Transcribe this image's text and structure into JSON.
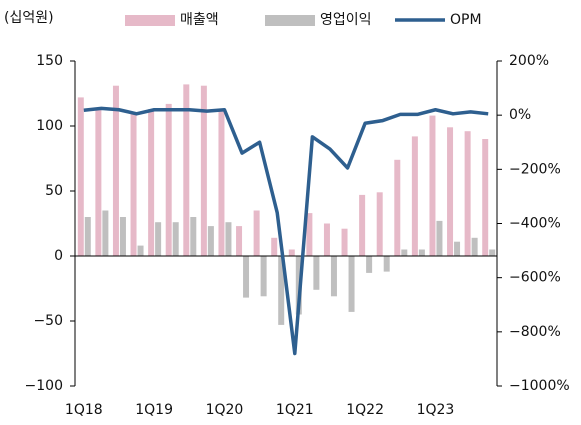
{
  "chart_data": {
    "type": "bar_line",
    "unit_label": "(십억원)",
    "categories": [
      "1Q18",
      null,
      null,
      null,
      "1Q19",
      null,
      null,
      null,
      "1Q20",
      null,
      null,
      null,
      "1Q21",
      null,
      null,
      null,
      "1Q22",
      null,
      null,
      null,
      "1Q23",
      null,
      null,
      null
    ],
    "series": [
      {
        "name": "매출액",
        "type": "bar",
        "color": "#e6b9c8",
        "values": [
          122,
          113,
          131,
          110,
          113,
          117,
          132,
          131,
          113,
          23,
          35,
          14,
          5,
          33,
          25,
          21,
          47,
          49,
          74,
          92,
          108,
          99,
          96,
          90
        ]
      },
      {
        "name": "영업이익",
        "type": "bar",
        "color": "#bfbfbf",
        "values": [
          30,
          35,
          30,
          8,
          26,
          26,
          30,
          23,
          26,
          -32,
          -31,
          -53,
          -45,
          -26,
          -31,
          -43,
          -13,
          -12,
          5,
          5,
          27,
          11,
          14,
          5
        ]
      },
      {
        "name": "OPM",
        "type": "line",
        "axis": "y2",
        "color": "#2e5f8f",
        "values": [
          18,
          25,
          20,
          5,
          20,
          20,
          20,
          15,
          20,
          -140,
          -100,
          -360,
          -880,
          -80,
          -125,
          -195,
          -30,
          -20,
          3,
          3,
          20,
          5,
          12,
          5
        ]
      }
    ],
    "ylim": [
      -100,
      150
    ],
    "yticks": [
      {
        "value": -100,
        "label": "−100"
      },
      {
        "value": -50,
        "label": "−50"
      },
      0,
      50,
      100,
      150
    ],
    "y2lim": [
      -1000,
      200
    ],
    "y2ticks": [
      {
        "value": -1000,
        "label": "−1000%"
      },
      {
        "value": -800,
        "label": "−800%"
      },
      {
        "value": -600,
        "label": "−600%"
      },
      {
        "value": -400,
        "label": "−400%"
      },
      {
        "value": -200,
        "label": "−200%"
      },
      {
        "value": 0,
        "label": "0%"
      },
      {
        "value": 200,
        "label": "200%"
      }
    ],
    "legend": "top"
  }
}
